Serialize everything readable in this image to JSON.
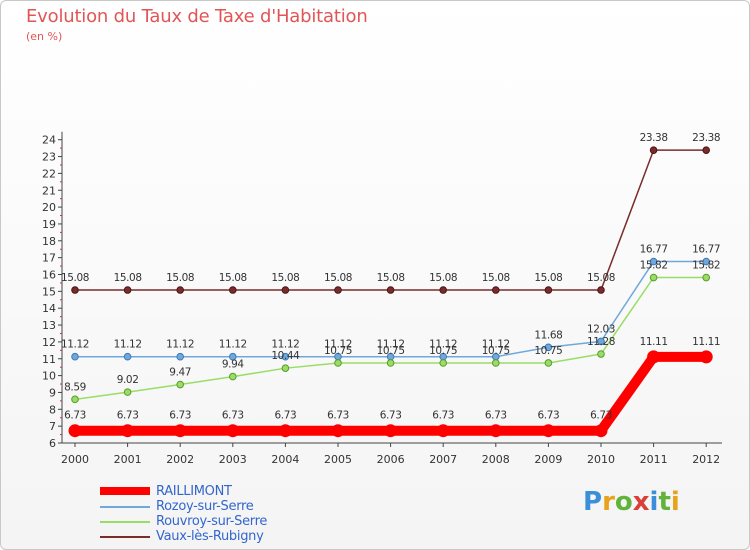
{
  "header": {
    "title": "Evolution du Taux de Taxe d'Habitation",
    "subtitle": "(en %)"
  },
  "logo": {
    "text": "Proxiti"
  },
  "chart_data": {
    "type": "line",
    "x": [
      "2000",
      "2001",
      "2002",
      "2003",
      "2004",
      "2005",
      "2006",
      "2007",
      "2008",
      "2009",
      "2010",
      "2011",
      "2012"
    ],
    "ylim": [
      6,
      24
    ],
    "yticks": [
      6,
      7,
      8,
      9,
      10,
      11,
      12,
      13,
      14,
      15,
      16,
      17,
      18,
      19,
      20,
      21,
      22,
      23,
      24
    ],
    "grid": false,
    "legend_position": "bottom-left",
    "series": [
      {
        "name": "RAILLIMONT",
        "color": "#ff0000",
        "values": [
          6.73,
          6.73,
          6.73,
          6.73,
          6.73,
          6.73,
          6.73,
          6.73,
          6.73,
          6.73,
          6.73,
          11.11,
          11.11
        ],
        "labels": [
          "6.73",
          "6.73",
          "6.73",
          "6.73",
          "6.73",
          "6.73",
          "6.73",
          "6.73",
          "6.73",
          "6.73",
          "6.73",
          "11.11",
          "11.11"
        ]
      },
      {
        "name": "Rozoy-sur-Serre",
        "color": "#6fa8dc",
        "values": [
          11.12,
          11.12,
          11.12,
          11.12,
          11.12,
          11.12,
          11.12,
          11.12,
          11.12,
          11.68,
          12.03,
          16.77,
          16.77
        ],
        "labels": [
          "11.12",
          "11.12",
          "11.12",
          "11.12",
          "11.12",
          "11.12",
          "11.12",
          "11.12",
          "11.12",
          "11.68",
          "12.03",
          "16.77",
          "16.77"
        ]
      },
      {
        "name": "Rouvroy-sur-Serre",
        "color": "#99dd66",
        "values": [
          8.59,
          9.02,
          9.47,
          9.94,
          10.44,
          10.75,
          10.75,
          10.75,
          10.75,
          10.75,
          11.28,
          15.82,
          15.82
        ],
        "labels": [
          "8.59",
          "9.02",
          "9.47",
          "9.94",
          "10.44",
          "10.75",
          "10.75",
          "10.75",
          "10.75",
          "10.75",
          "11.28",
          "15.82",
          "15.82"
        ]
      },
      {
        "name": "Vaux-lès-Rubigny",
        "color": "#7a2b2b",
        "values": [
          15.08,
          15.08,
          15.08,
          15.08,
          15.08,
          15.08,
          15.08,
          15.08,
          15.08,
          15.08,
          15.08,
          23.38,
          23.38
        ],
        "labels": [
          "15.08",
          "15.08",
          "15.08",
          "15.08",
          "15.08",
          "15.08",
          "15.08",
          "15.08",
          "15.08",
          "15.08",
          "15.08",
          "23.38",
          "23.38"
        ]
      }
    ]
  }
}
